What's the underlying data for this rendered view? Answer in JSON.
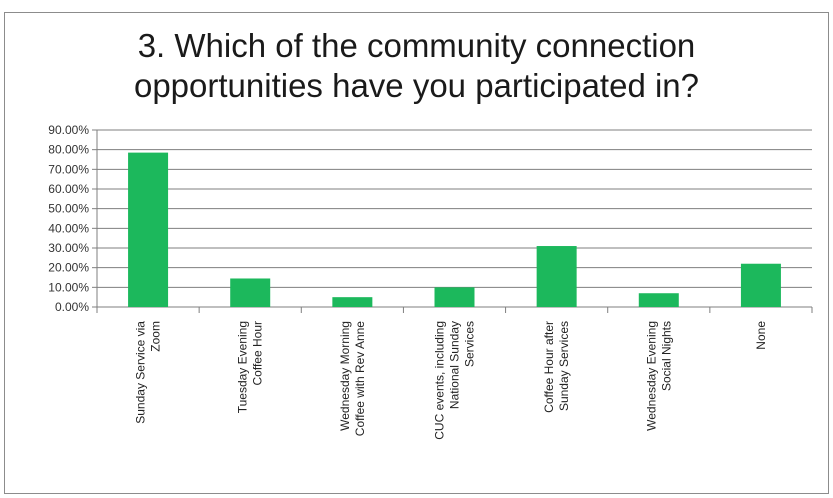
{
  "chart_data": {
    "type": "bar",
    "title": [
      "3. Which of the community connection",
      "opportunities have you participated in?"
    ],
    "xlabel": "",
    "ylabel": "",
    "ylim": [
      0,
      0.9
    ],
    "ytick_labels": [
      "0.00%",
      "10.00%",
      "20.00%",
      "30.00%",
      "40.00%",
      "50.00%",
      "60.00%",
      "70.00%",
      "80.00%",
      "90.00%"
    ],
    "grid": true,
    "legend": "none",
    "bar_color": "#1cb85c",
    "categories": [
      [
        "Sunday Service via",
        "Zoom"
      ],
      [
        "Tuesday Evening",
        "Coffee Hour"
      ],
      [
        "Wednesday Morning",
        "Coffee with Rev Anne"
      ],
      [
        "CUC events, including",
        "National Sunday",
        "Services"
      ],
      [
        "Coffee Hour after",
        "Sunday Services"
      ],
      [
        "Wednesday Evening",
        "Social Nights"
      ],
      [
        "None"
      ]
    ],
    "values": [
      0.785,
      0.145,
      0.05,
      0.1,
      0.31,
      0.07,
      0.22
    ]
  }
}
